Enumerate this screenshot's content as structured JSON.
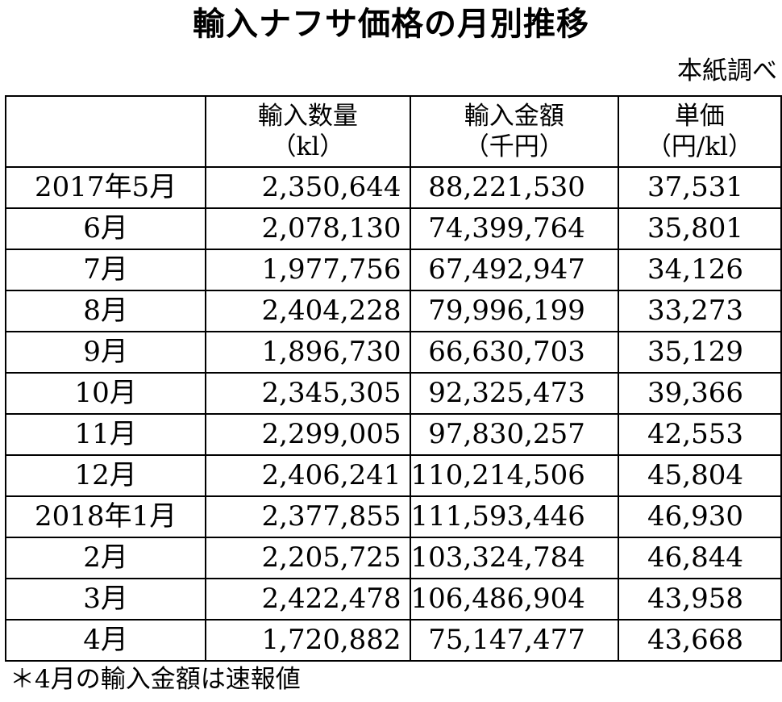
{
  "title": "輸入ナフサ価格の月別推移",
  "source": "本紙調べ",
  "table": {
    "columns": [
      {
        "label": "輸入数量",
        "unit": "（kl）"
      },
      {
        "label": "輸入金額",
        "unit": "（千円）"
      },
      {
        "label": "単価",
        "unit": "（円/kl）"
      }
    ],
    "rows": [
      {
        "month": "2017年5月",
        "quantity": "2,350,644",
        "amount": "88,221,530",
        "price": "37,531"
      },
      {
        "month": "6月",
        "quantity": "2,078,130",
        "amount": "74,399,764",
        "price": "35,801"
      },
      {
        "month": "7月",
        "quantity": "1,977,756",
        "amount": "67,492,947",
        "price": "34,126"
      },
      {
        "month": "8月",
        "quantity": "2,404,228",
        "amount": "79,996,199",
        "price": "33,273"
      },
      {
        "month": "9月",
        "quantity": "1,896,730",
        "amount": "66,630,703",
        "price": "35,129"
      },
      {
        "month": "10月",
        "quantity": "2,345,305",
        "amount": "92,325,473",
        "price": "39,366"
      },
      {
        "month": "11月",
        "quantity": "2,299,005",
        "amount": "97,830,257",
        "price": "42,553"
      },
      {
        "month": "12月",
        "quantity": "2,406,241",
        "amount": "110,214,506",
        "price": "45,804"
      },
      {
        "month": "2018年1月",
        "quantity": "2,377,855",
        "amount": "111,593,446",
        "price": "46,930"
      },
      {
        "month": "2月",
        "quantity": "2,205,725",
        "amount": "103,324,784",
        "price": "46,844"
      },
      {
        "month": "3月",
        "quantity": "2,422,478",
        "amount": "106,486,904",
        "price": "43,958"
      },
      {
        "month": "4月",
        "quantity": "1,720,882",
        "amount": "75,147,477",
        "price": "43,668"
      }
    ]
  },
  "footnote": "＊4月の輸入金額は速報値"
}
